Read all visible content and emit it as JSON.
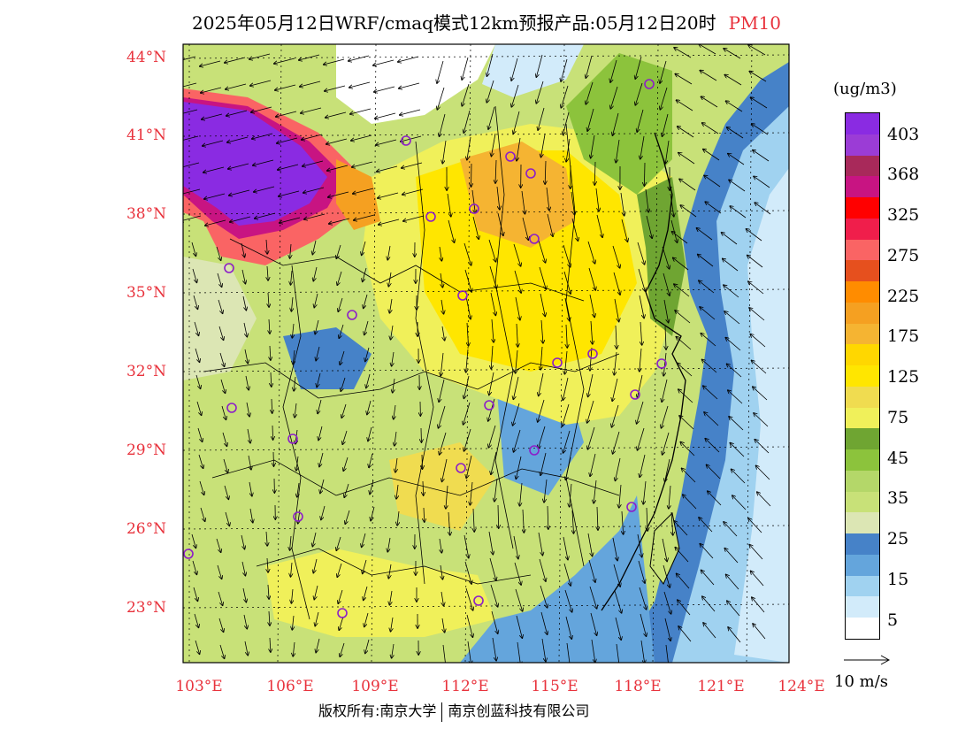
{
  "header": {
    "title": "2025年05月12日WRF/cmaq模式12km预报产品:05月12日20时",
    "pollutant": "PM10",
    "pollutant_color": "#e8323c"
  },
  "map": {
    "lat_labels": [
      "44°N",
      "41°N",
      "38°N",
      "35°N",
      "32°N",
      "29°N",
      "26°N",
      "23°N"
    ],
    "lon_labels": [
      "103°E",
      "106°E",
      "109°E",
      "112°E",
      "115°E",
      "118°E",
      "121°E",
      "124°E"
    ],
    "axis_label_color": "#e8323c"
  },
  "legend": {
    "unit": "(ug/m3)",
    "labels": [
      "403",
      "368",
      "325",
      "275",
      "225",
      "175",
      "125",
      "75",
      "45",
      "35",
      "25",
      "15",
      "5"
    ],
    "colors": [
      "#8a2be2",
      "#9b3cd6",
      "#a8295a",
      "#c81482",
      "#ff0000",
      "#f01e4b",
      "#fa6464",
      "#e6501e",
      "#ff8c00",
      "#f5a021",
      "#f5b432",
      "#ffd700",
      "#ffe600",
      "#f0dc50",
      "#f0f05a",
      "#6fa532",
      "#8cc33c",
      "#b4d769",
      "#c8e178",
      "#dce6b4",
      "#4682c8",
      "#64a5dc",
      "#a0d2f0",
      "#d2ebfa",
      "#ffffff"
    ]
  },
  "wind": {
    "reference_label": "10 m/s"
  },
  "city_marker_color": "#8c1ec8",
  "footer": {
    "copyright": "版权所有:南京大学",
    "company": "南京创蓝科技有限公司"
  }
}
